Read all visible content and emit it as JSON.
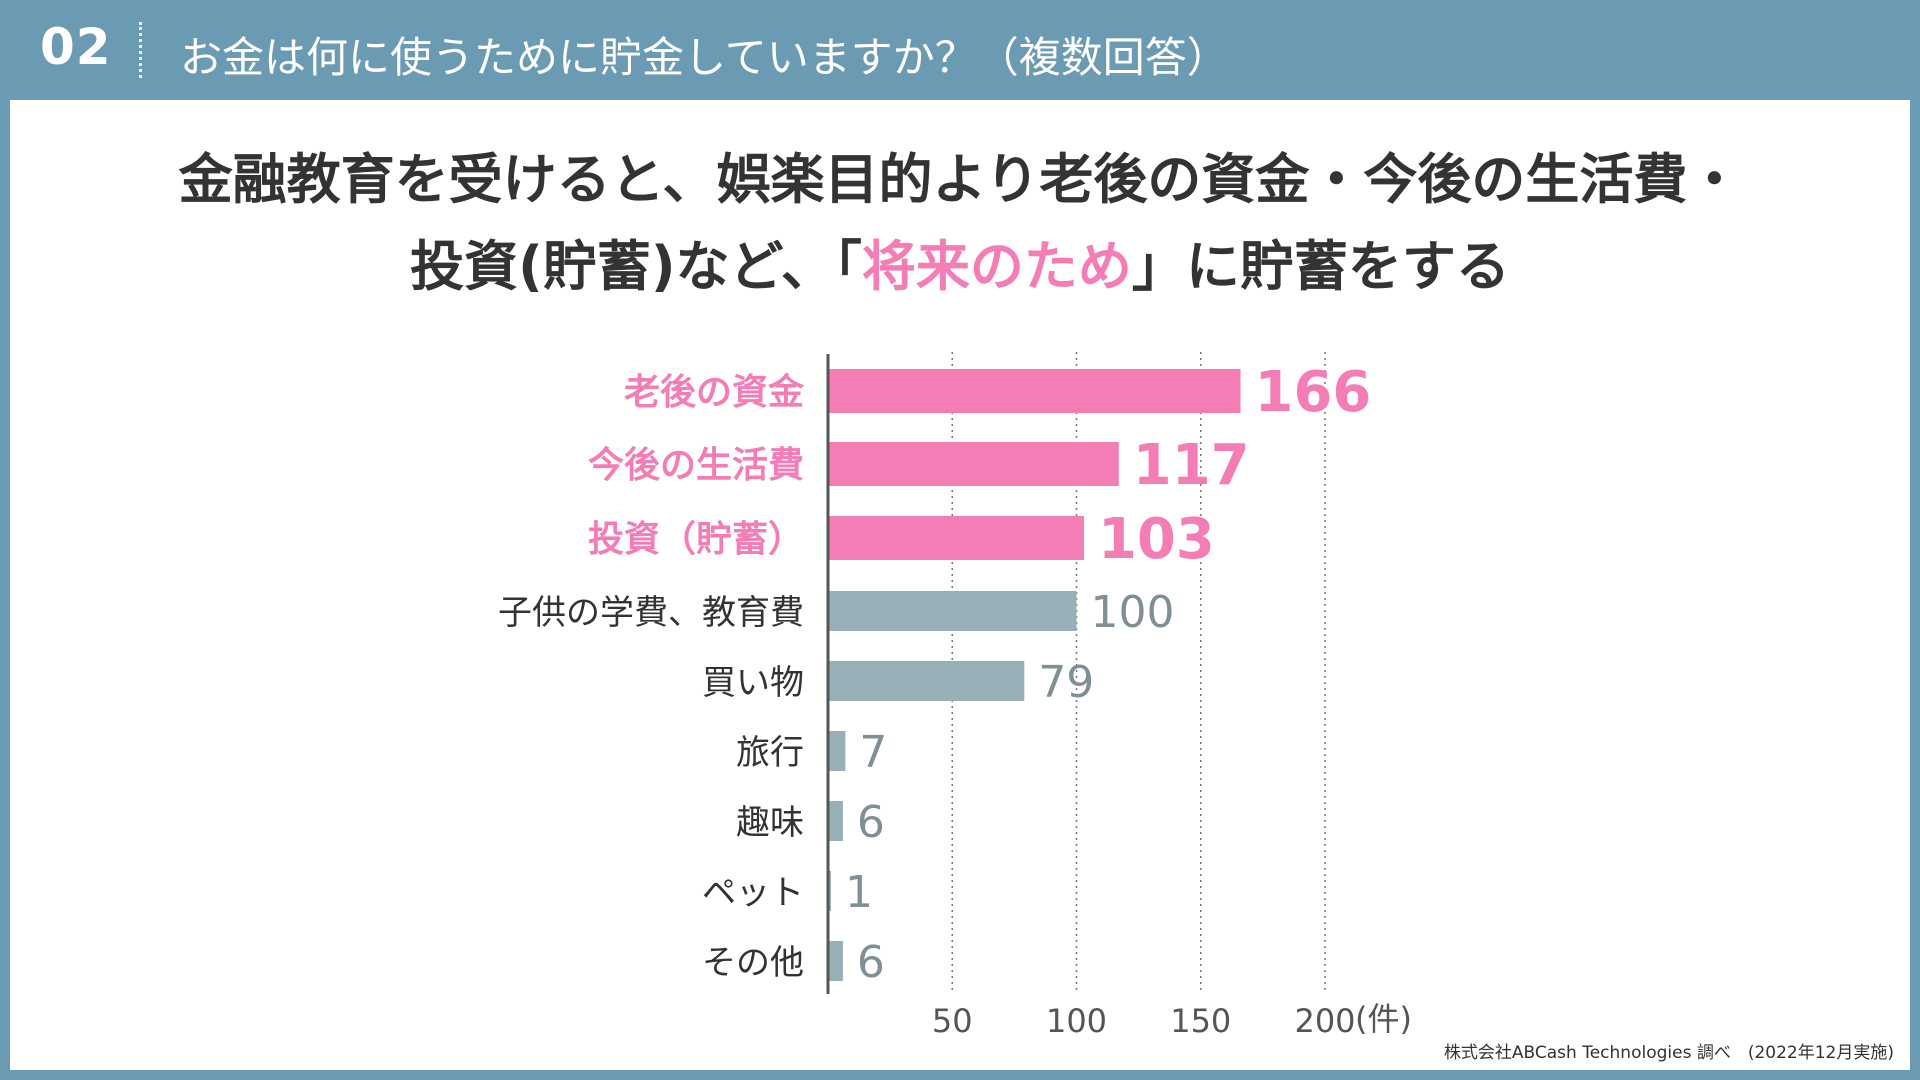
{
  "header": {
    "number": "02",
    "question": "お金は何に使うために貯金していますか？（複数回答）"
  },
  "headline": {
    "line1": "金融教育を受けると、娯楽目的より老後の資金・今後の生活費・",
    "line2_before": "投資(貯蓄)など、「",
    "line2_accent": "将来のため",
    "line2_after": "」に貯蓄をする"
  },
  "colors": {
    "header_bg": "#6b9bb3",
    "highlight": "#f47db6",
    "muted": "#98afb7",
    "muted_text": "#7f8f95",
    "axis": "#555555"
  },
  "chart_data": {
    "type": "bar",
    "orientation": "horizontal",
    "categories": [
      "老後の資金",
      "今後の生活費",
      "投資（貯蓄）",
      "子供の学費、教育費",
      "買い物",
      "旅行",
      "趣味",
      "ペット",
      "その他"
    ],
    "values": [
      166,
      117,
      103,
      100,
      79,
      7,
      6,
      1,
      6
    ],
    "value_labels": [
      "166",
      "117",
      "103",
      "100",
      "79",
      "7",
      "6",
      "1",
      "6"
    ],
    "highlighted": [
      true,
      true,
      true,
      false,
      false,
      false,
      false,
      false,
      false
    ],
    "xticks": [
      50,
      100,
      150,
      200
    ],
    "xtick_labels": [
      "50",
      "100",
      "150",
      "200"
    ],
    "xunit": "(件)",
    "xlim": [
      0,
      200
    ],
    "grid": true
  },
  "source": "株式会社ABCash Technologies 調べ　(2022年12月実施)"
}
